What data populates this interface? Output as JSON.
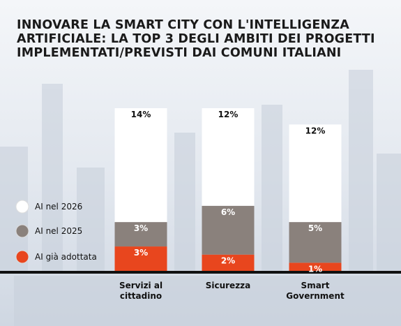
{
  "chart_data": {
    "type": "stacked-bar",
    "title": "INNOVARE LA SMART CITY CON L'INTELLIGENZA ARTIFICIALE: LA TOP 3 DEGLI AMBITI DEI PROGETTI IMPLEMENTATI/PREVISTI DAI COMUNI ITALIANI",
    "categories": [
      "Servizi al cittadino",
      "Sicurezza",
      "Smart Government"
    ],
    "series": [
      {
        "name": "AI già adottata",
        "color": "#e8461e",
        "values": [
          3,
          2,
          1
        ],
        "value_labels": [
          "3%",
          "2%",
          "1%"
        ]
      },
      {
        "name": "AI nel 2025",
        "color": "#8a817c",
        "values": [
          3,
          6,
          5
        ],
        "value_labels": [
          "3%",
          "6%",
          "5%"
        ]
      },
      {
        "name": "AI nel 2026",
        "color": "#ffffff",
        "values": [
          14,
          12,
          12
        ],
        "value_labels": [
          "14%",
          "12%",
          "12%"
        ]
      }
    ]
  }
}
